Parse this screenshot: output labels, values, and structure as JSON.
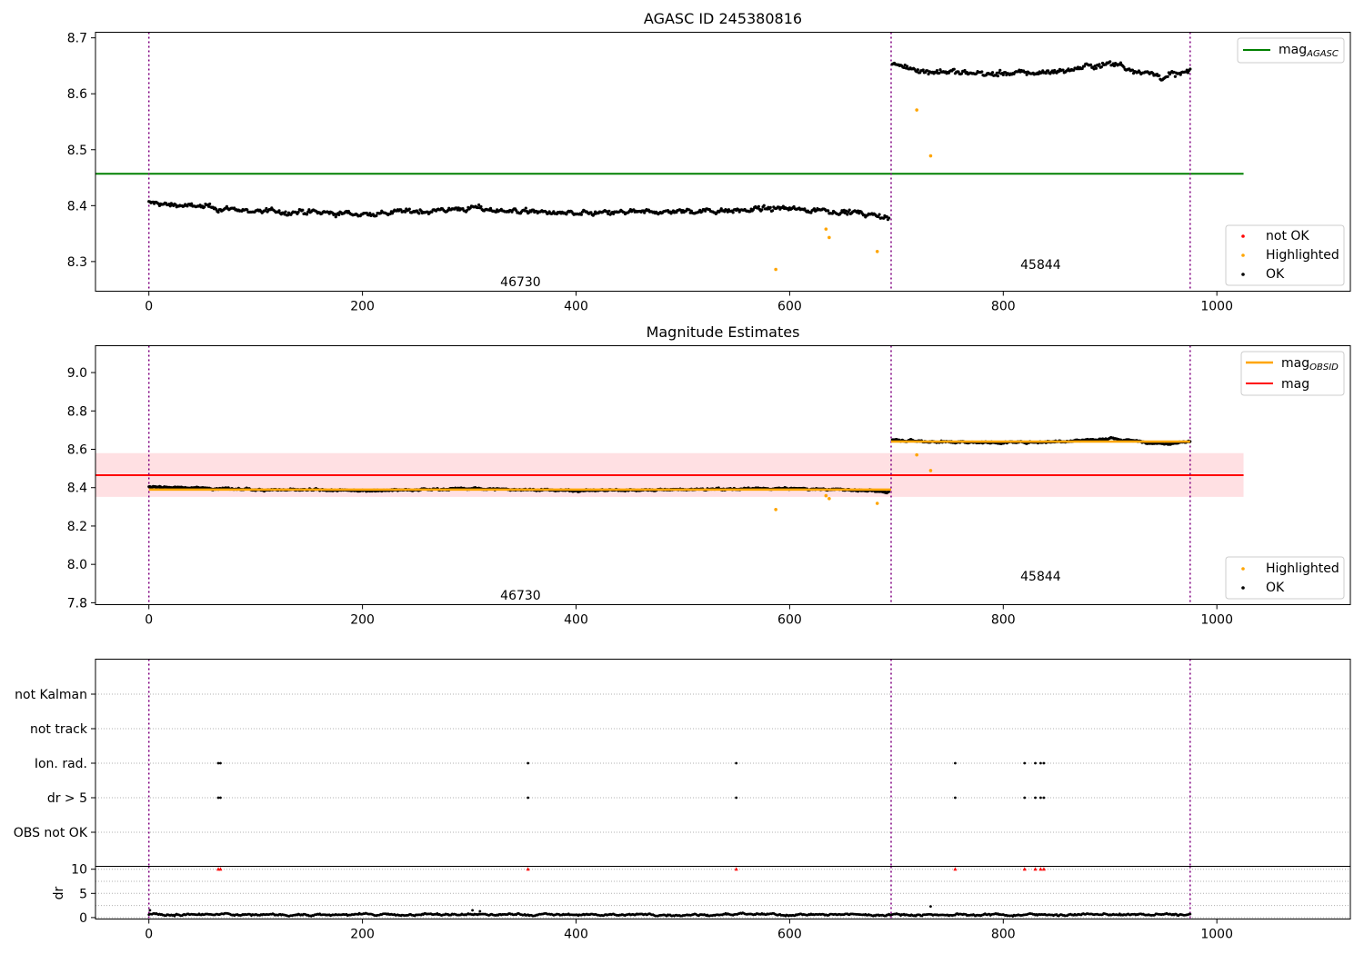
{
  "chart_data": [
    {
      "type": "scatter",
      "title": "AGASC ID 245380816",
      "xlabel": "",
      "ylabel": "",
      "xlim": [
        -50,
        1125
      ],
      "ylim": [
        8.247,
        8.71
      ],
      "xticks": [
        0,
        200,
        400,
        600,
        800,
        1000
      ],
      "yticks": [
        8.3,
        8.4,
        8.5,
        8.6,
        8.7
      ],
      "ytick_labels": [
        "8.3",
        "8.4",
        "8.5",
        "8.6",
        "8.7"
      ],
      "obs_boundaries": [
        0,
        695,
        975
      ],
      "obs_labels": [
        {
          "text": "46730",
          "x": 348,
          "y": 8.264
        },
        {
          "text": "45844",
          "x": 835,
          "y": 8.295
        }
      ],
      "mag_agasc": {
        "value": 8.457,
        "x_range": [
          -50,
          1025
        ]
      },
      "series": [
        {
          "name": "OK",
          "color": "#000000",
          "segments": [
            {
              "x_start": 0,
              "x_end": 693,
              "start": 8.405,
              "end": 8.378,
              "knots": [
                [
                  0,
                  8.405
                ],
                [
                  100,
                  8.39
                ],
                [
                  200,
                  8.385
                ],
                [
                  300,
                  8.395
                ],
                [
                  400,
                  8.385
                ],
                [
                  500,
                  8.39
                ],
                [
                  600,
                  8.395
                ],
                [
                  650,
                  8.39
                ],
                [
                  693,
                  8.378
                ]
              ],
              "noise": 0.009
            },
            {
              "x_start": 696,
              "x_end": 975,
              "start": 8.652,
              "end": 8.64,
              "knots": [
                [
                  696,
                  8.652
                ],
                [
                  730,
                  8.64
                ],
                [
                  800,
                  8.635
                ],
                [
                  850,
                  8.64
                ],
                [
                  900,
                  8.655
                ],
                [
                  950,
                  8.63
                ],
                [
                  975,
                  8.64
                ]
              ],
              "noise": 0.01
            }
          ]
        },
        {
          "name": "Highlighted",
          "color": "#ffa500",
          "points": [
            [
              587,
              8.286
            ],
            [
              634,
              8.358
            ],
            [
              637,
              8.343
            ],
            [
              682,
              8.318
            ],
            [
              719,
              8.571
            ],
            [
              732,
              8.489
            ]
          ]
        },
        {
          "name": "not OK",
          "color": "#ff0000",
          "points": []
        }
      ],
      "legend_upper": [
        "mag_AGASC"
      ],
      "legend_lower": [
        "not OK",
        "Highlighted",
        "OK"
      ],
      "legend_placement": [
        "upper right",
        "lower right"
      ]
    },
    {
      "type": "scatter",
      "title": "Magnitude Estimates",
      "xlabel": "",
      "ylabel": "",
      "xlim": [
        -50,
        1125
      ],
      "ylim": [
        7.79,
        9.14
      ],
      "xticks": [
        0,
        200,
        400,
        600,
        800,
        1000
      ],
      "yticks": [
        7.8,
        8.0,
        8.2,
        8.4,
        8.6,
        8.8,
        9.0
      ],
      "ytick_labels": [
        "7.8",
        "8.0",
        "8.2",
        "8.4",
        "8.6",
        "8.8",
        "9.0"
      ],
      "obs_boundaries": [
        0,
        695,
        975
      ],
      "obs_labels": [
        {
          "text": "46730",
          "x": 348,
          "y": 7.84
        },
        {
          "text": "45844",
          "x": 835,
          "y": 7.94
        }
      ],
      "mag": {
        "value": 8.465,
        "band": [
          8.352,
          8.58
        ],
        "x_range": [
          -50,
          1025
        ]
      },
      "mag_obsid": [
        {
          "x_range": [
            0,
            695
          ],
          "value": 8.39
        },
        {
          "x_range": [
            695,
            975
          ],
          "value": 8.64
        }
      ],
      "series": [
        {
          "name": "OK",
          "color": "#000000",
          "segments": [
            {
              "x_start": 0,
              "x_end": 693,
              "start": 8.405,
              "end": 8.378,
              "knots": [
                [
                  0,
                  8.405
                ],
                [
                  100,
                  8.39
                ],
                [
                  200,
                  8.385
                ],
                [
                  300,
                  8.395
                ],
                [
                  400,
                  8.385
                ],
                [
                  500,
                  8.39
                ],
                [
                  600,
                  8.395
                ],
                [
                  650,
                  8.39
                ],
                [
                  693,
                  8.378
                ]
              ],
              "noise": 0.009
            },
            {
              "x_start": 696,
              "x_end": 975,
              "start": 8.652,
              "end": 8.64,
              "knots": [
                [
                  696,
                  8.652
                ],
                [
                  730,
                  8.64
                ],
                [
                  800,
                  8.635
                ],
                [
                  850,
                  8.64
                ],
                [
                  900,
                  8.655
                ],
                [
                  950,
                  8.63
                ],
                [
                  975,
                  8.64
                ]
              ],
              "noise": 0.01
            }
          ]
        },
        {
          "name": "Highlighted",
          "color": "#ffa500",
          "points": [
            [
              587,
              8.286
            ],
            [
              634,
              8.358
            ],
            [
              637,
              8.343
            ],
            [
              682,
              8.318
            ],
            [
              719,
              8.571
            ],
            [
              732,
              8.489
            ]
          ]
        }
      ],
      "legend_upper": [
        "mag_OBSID",
        "mag"
      ],
      "legend_lower": [
        "Highlighted",
        "OK"
      ],
      "legend_placement": [
        "upper right",
        "lower right"
      ]
    },
    {
      "type": "scatter",
      "title": "",
      "xlabel": "",
      "ylabel": "",
      "xlim": [
        -50,
        1125
      ],
      "categories": [
        "not Kalman",
        "not track",
        "Ion. rad.",
        "dr > 5",
        "OBS not OK"
      ],
      "flag_x": [
        65,
        67,
        355,
        550,
        755,
        820,
        830,
        835,
        838
      ],
      "flag_rows": [
        "Ion. rad.",
        "dr > 5"
      ],
      "obs_boundaries": [
        0,
        695,
        975
      ]
    },
    {
      "type": "scatter",
      "title": "",
      "xlabel": "",
      "ylabel": "dr",
      "xlim": [
        -50,
        1125
      ],
      "ylim": [
        -0.3,
        10.6
      ],
      "xticks": [
        0,
        200,
        400,
        600,
        800,
        1000
      ],
      "yticks": [
        0,
        5,
        10
      ],
      "ytick_labels": [
        "0",
        "5",
        "10"
      ],
      "dr_base": 0.6,
      "dr_outliers": [
        [
          732,
          2.3
        ],
        [
          303,
          1.5
        ],
        [
          310,
          1.3
        ],
        [
          1,
          1.5
        ]
      ],
      "dr_clipped_x": [
        65,
        67,
        355,
        550,
        755,
        820,
        830,
        835,
        838
      ],
      "dr_clipped_value": 10,
      "obs_boundaries": [
        0,
        695,
        975
      ],
      "xmax_data": 975
    }
  ],
  "colors": {
    "ok": "#000000",
    "highlighted": "#ffa500",
    "not_ok": "#ff0000",
    "mag_agasc": "#008000",
    "mag": "#ff0000",
    "mag_band": "#ffe0e3",
    "mag_obsid": "#ffa500",
    "obs_boundary": "#800080",
    "grid": "#b0b0b0"
  },
  "legend": {
    "mag_agasc_main": "mag",
    "mag_agasc_sub": "AGASC",
    "mag_obsid_main": "mag",
    "mag_obsid_sub": "OBSID",
    "mag": "mag",
    "not_ok": "not OK",
    "highlighted": "Highlighted",
    "ok": "OK"
  }
}
